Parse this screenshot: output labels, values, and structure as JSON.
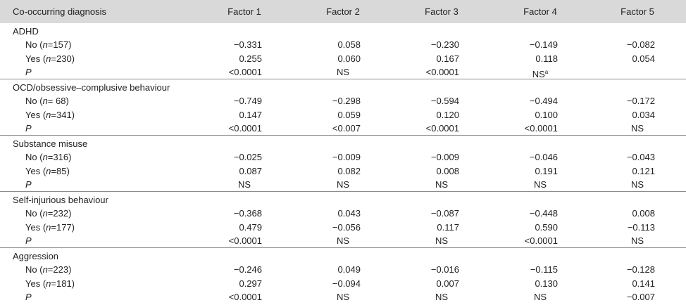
{
  "header": [
    "Co-occurring diagnosis",
    "Factor 1",
    "Factor 2",
    "Factor 3",
    "Factor 4",
    "Factor 5"
  ],
  "groups": [
    {
      "title": "ADHD",
      "rows": [
        {
          "label": "No (n=157)",
          "values": [
            "−0.331",
            "0.058",
            "−0.230",
            "−0.149",
            "−0.082"
          ]
        },
        {
          "label": "Yes (n=230)",
          "values": [
            "0.255",
            "0.060",
            "0.167",
            "0.118",
            "0.054"
          ]
        },
        {
          "label": "P",
          "values": [
            "<0.0001",
            "NS",
            "<0.0001",
            {
              "text": "NS",
              "note": "a"
            },
            null
          ]
        }
      ]
    },
    {
      "title": "OCD/obsessive–complusive behaviour",
      "rows": [
        {
          "label": "No (n= 68)",
          "values": [
            "−0.749",
            "−0.298",
            "−0.594",
            "−0.494",
            "−0.172"
          ]
        },
        {
          "label": "Yes (n=341)",
          "values": [
            "0.147",
            "0.059",
            "0.120",
            "0.100",
            "0.034"
          ]
        },
        {
          "label": "P",
          "values": [
            "<0.0001",
            "<0.007",
            "<0.0001",
            "<0.0001",
            "NS"
          ]
        }
      ]
    },
    {
      "title": "Substance misuse",
      "rows": [
        {
          "label": "No (n=316)",
          "values": [
            "−0.025",
            "−0.009",
            "−0.009",
            "−0.046",
            "−0.043"
          ]
        },
        {
          "label": "Yes (n=85)",
          "values": [
            "0.087",
            "0.082",
            "0.008",
            "0.191",
            "0.121"
          ]
        },
        {
          "label": "P",
          "values": [
            "NS",
            "NS",
            "NS",
            "NS",
            "NS"
          ]
        }
      ]
    },
    {
      "title": "Self-injurious behaviour",
      "rows": [
        {
          "label": "No (n=232)",
          "values": [
            "−0.368",
            "0.043",
            "−0.087",
            "−0.448",
            "0.008"
          ]
        },
        {
          "label": "Yes (n=177)",
          "values": [
            "0.479",
            "−0.056",
            "0.117",
            "0.590",
            "−0.113"
          ]
        },
        {
          "label": "P",
          "values": [
            "<0.0001",
            "NS",
            "NS",
            "<0.0001",
            "NS"
          ]
        }
      ]
    },
    {
      "title": "Aggression",
      "rows": [
        {
          "label": "No (n=223)",
          "values": [
            "−0.246",
            "0.049",
            "−0.016",
            "−0.115",
            "−0.128"
          ]
        },
        {
          "label": "Yes (n=181)",
          "values": [
            "0.297",
            "−0.094",
            "0.007",
            "0.130",
            "0.141"
          ]
        },
        {
          "label": "P",
          "values": [
            "<0.0001",
            "NS",
            "NS",
            "NS",
            "−0.007"
          ]
        }
      ]
    }
  ]
}
